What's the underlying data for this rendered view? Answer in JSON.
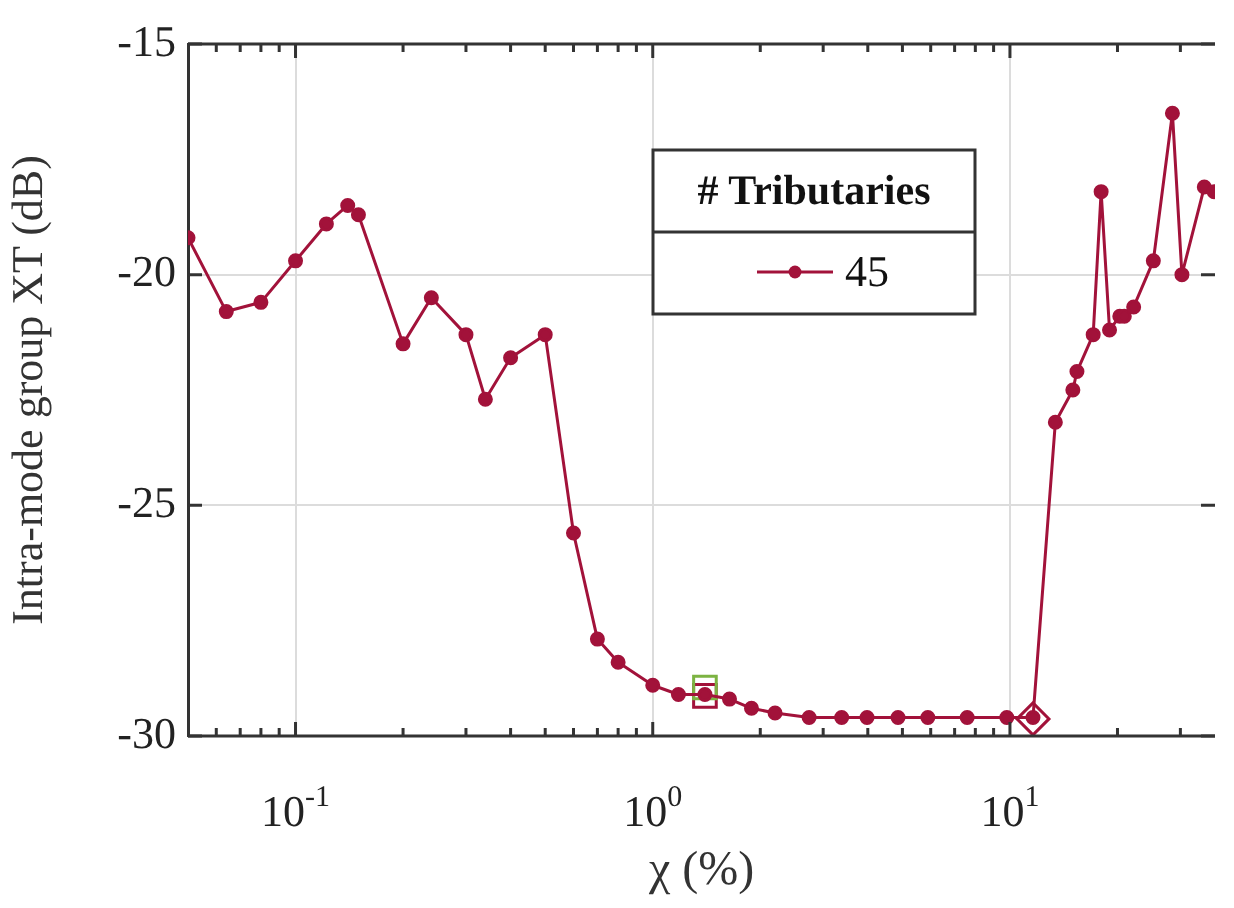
{
  "chart_data": {
    "type": "line",
    "xlabel": "χ (%)",
    "ylabel": "Intra-mode group XT (dB)",
    "legend_title": "# Tributaries",
    "log": "x",
    "grid": true,
    "legend": "top right",
    "xlim": [
      0.05,
      37.5
    ],
    "ylim": [
      -30,
      -15
    ],
    "xticks": [
      {
        "value": 0.06,
        "label": null
      },
      {
        "value": 0.07,
        "label": null
      },
      {
        "value": 0.08,
        "label": null
      },
      {
        "value": 0.09,
        "label": null
      },
      {
        "value": 0.1,
        "label": "10$^{-1}$"
      },
      {
        "value": 0.2,
        "label": null
      },
      {
        "value": 0.3,
        "label": null
      },
      {
        "value": 0.4,
        "label": null
      },
      {
        "value": 0.5,
        "label": null
      },
      {
        "value": 0.6,
        "label": null
      },
      {
        "value": 0.7,
        "label": null
      },
      {
        "value": 0.8,
        "label": null
      },
      {
        "value": 0.9,
        "label": null
      },
      {
        "value": 1,
        "label": "10$^{0}$"
      },
      {
        "value": 2,
        "label": null
      },
      {
        "value": 3,
        "label": null
      },
      {
        "value": 4,
        "label": null
      },
      {
        "value": 5,
        "label": null
      },
      {
        "value": 6,
        "label": null
      },
      {
        "value": 7,
        "label": null
      },
      {
        "value": 8,
        "label": null
      },
      {
        "value": 9,
        "label": null
      },
      {
        "value": 10,
        "label": "10$^{1}$"
      },
      {
        "value": 20,
        "label": null
      },
      {
        "value": 30,
        "label": null
      }
    ],
    "yticks": [
      -30,
      -25,
      -20,
      -15
    ],
    "series": [
      {
        "name": "45",
        "type": "line",
        "marker": "circle",
        "color": "#a2123a",
        "x": [
          0.05,
          0.064,
          0.08,
          0.1,
          0.122,
          0.14,
          0.15,
          0.2,
          0.24,
          0.3,
          0.34,
          0.4,
          0.5,
          0.6,
          0.7,
          0.8,
          1.0,
          1.18,
          1.4,
          1.64,
          1.89,
          2.2,
          2.74,
          3.38,
          3.98,
          4.86,
          5.89,
          7.59,
          9.8,
          11.6,
          13.4,
          15.0,
          15.4,
          17.1,
          18.0,
          19.0,
          20.3,
          20.9,
          22.2,
          25.2,
          28.5,
          30.3,
          35.0,
          37.3
        ],
        "values": [
          -19.2,
          -20.8,
          -20.6,
          -19.7,
          -18.9,
          -18.5,
          -18.7,
          -21.5,
          -20.5,
          -21.3,
          -22.7,
          -21.8,
          -21.3,
          -25.6,
          -27.9,
          -28.4,
          -28.9,
          -29.1,
          -29.1,
          -29.2,
          -29.4,
          -29.5,
          -29.6,
          -29.6,
          -29.6,
          -29.6,
          -29.6,
          -29.6,
          -29.6,
          -29.6,
          -23.2,
          -22.5,
          -22.1,
          -21.3,
          -18.2,
          -21.2,
          -20.9,
          -20.9,
          -20.7,
          -19.7,
          -16.5,
          -20.0,
          -18.1,
          -18.2
        ]
      },
      {
        "type": "scatter",
        "marker": "square",
        "color": "#7cb342",
        "x": [
          1.4
        ],
        "values": [
          -28.95
        ]
      },
      {
        "type": "scatter",
        "marker": "square",
        "color": "#a2123a",
        "x": [
          1.4
        ],
        "values": [
          -29.13
        ]
      },
      {
        "type": "scatter",
        "marker": "diamond",
        "color": "#a2123a",
        "x": [
          11.6
        ],
        "values": [
          -29.63
        ]
      }
    ]
  }
}
